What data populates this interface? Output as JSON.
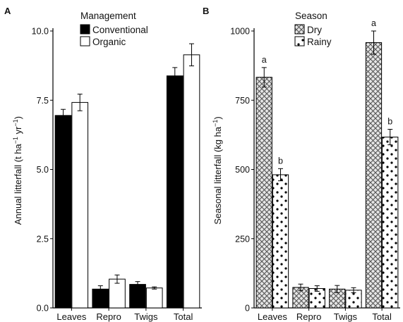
{
  "chart_data": [
    {
      "panel": "A",
      "type": "bar",
      "categories": [
        "Leaves",
        "Repro",
        "Twigs",
        "Total"
      ],
      "series": [
        {
          "name": "Conventional",
          "values": [
            6.95,
            0.68,
            0.85,
            8.38
          ],
          "errors": [
            0.22,
            0.12,
            0.1,
            0.3
          ],
          "fill": "#000000"
        },
        {
          "name": "Organic",
          "values": [
            7.42,
            1.04,
            0.72,
            9.14
          ],
          "errors": [
            0.3,
            0.15,
            0.04,
            0.4
          ],
          "fill": "#ffffff"
        }
      ],
      "legend_title": "Management",
      "legend_position": "top",
      "ylabel_main": "Annual litterfall (t ha",
      "ylabel_sup1": "−1",
      "ylabel_mid": " yr",
      "ylabel_sup2": "−1",
      "ylabel_end": ")",
      "ylim": [
        0,
        10
      ],
      "yticks": [
        "0.0",
        "2.5",
        "5.0",
        "7.5",
        "10.0"
      ],
      "grid": false
    },
    {
      "panel": "B",
      "type": "bar",
      "categories": [
        "Leaves",
        "Repro",
        "Twigs",
        "Total"
      ],
      "series": [
        {
          "name": "Dry",
          "values": [
            833,
            74,
            68,
            958
          ],
          "errors": [
            35,
            12,
            13,
            42
          ],
          "pattern": "crosshatch",
          "labels": [
            "a",
            "",
            "",
            "a"
          ]
        },
        {
          "name": "Rainy",
          "values": [
            481,
            70,
            64,
            617
          ],
          "errors": [
            22,
            10,
            9,
            28
          ],
          "pattern": "dots",
          "labels": [
            "b",
            "",
            "",
            "b"
          ]
        }
      ],
      "legend_title": "Season",
      "legend_position": "top",
      "ylabel_main": "Seasonal litterfall (kg ha",
      "ylabel_sup1": "−1",
      "ylabel_end": ")",
      "ylim": [
        0,
        1000
      ],
      "yticks": [
        "0",
        "250",
        "500",
        "750",
        "1000"
      ],
      "grid": false
    }
  ]
}
